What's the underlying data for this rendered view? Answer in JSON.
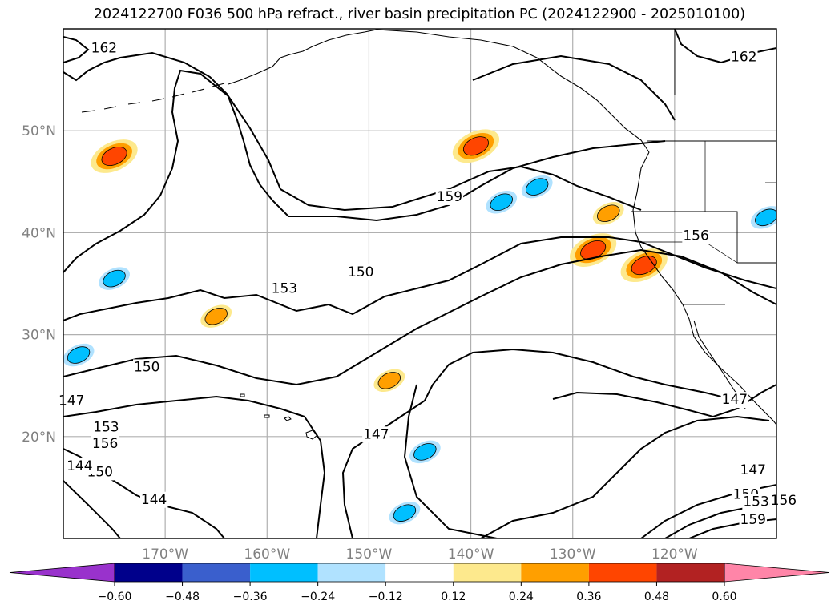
{
  "title": "2024122700 F036 500 hPa refract., river basin precipitation PC (2024122900 - 2025010100)",
  "chart_data": {
    "type": "contour-map",
    "title": "2024122700 F036 500 hPa refract., river basin precipitation PC (2024122900 - 2025010100)",
    "region": "North Pacific / western North America",
    "lon_range": [
      -180,
      -110
    ],
    "lat_range": [
      10,
      60
    ],
    "lon_ticks": [
      "170°W",
      "160°W",
      "150°W",
      "140°W",
      "130°W",
      "120°W"
    ],
    "lat_ticks": [
      "20°N",
      "30°N",
      "40°N",
      "50°N"
    ],
    "grid": true,
    "refractivity_contours": {
      "interval": 3,
      "labels": [
        "144",
        "147",
        "150",
        "153",
        "156",
        "159",
        "162"
      ]
    },
    "colorbar": {
      "orientation": "horizontal",
      "extend": "both",
      "ticks": [
        "−0.60",
        "−0.48",
        "−0.36",
        "−0.24",
        "−0.12",
        "0.12",
        "0.24",
        "0.36",
        "0.48",
        "0.60"
      ],
      "colors": [
        "#9932cc",
        "#00008b",
        "#3a5fcd",
        "#00bfff",
        "#b0e2ff",
        "#ffffff",
        "#fde98d",
        "#ff9f00",
        "#ff4500",
        "#b22222",
        "#ff85a8"
      ]
    },
    "contour_labels": [
      {
        "text": "162",
        "lon": -176.0,
        "lat": 57.7
      },
      {
        "text": "162",
        "lon": -113.2,
        "lat": 56.8
      },
      {
        "text": "159",
        "lon": -142.1,
        "lat": 43.1
      },
      {
        "text": "156",
        "lon": -117.9,
        "lat": 39.3
      },
      {
        "text": "153",
        "lon": -158.3,
        "lat": 34.1
      },
      {
        "text": "150",
        "lon": -150.8,
        "lat": 35.7
      },
      {
        "text": "150",
        "lon": -171.8,
        "lat": 26.4
      },
      {
        "text": "147",
        "lon": -179.2,
        "lat": 23.1
      },
      {
        "text": "147",
        "lon": -114.1,
        "lat": 23.2
      },
      {
        "text": "153",
        "lon": -175.8,
        "lat": 20.5
      },
      {
        "text": "156",
        "lon": -175.9,
        "lat": 18.9
      },
      {
        "text": "150",
        "lon": -176.4,
        "lat": 16.1
      },
      {
        "text": "147",
        "lon": -149.3,
        "lat": 19.8
      },
      {
        "text": "144",
        "lon": -178.4,
        "lat": 16.7
      },
      {
        "text": "144",
        "lon": -171.1,
        "lat": 13.4
      },
      {
        "text": "147",
        "lon": -112.3,
        "lat": 16.3
      },
      {
        "text": "150",
        "lon": -113.0,
        "lat": 13.9
      },
      {
        "text": "153",
        "lon": -112.0,
        "lat": 13.2
      },
      {
        "text": "156",
        "lon": -109.3,
        "lat": 13.3
      },
      {
        "text": "159",
        "lon": -112.3,
        "lat": 11.4
      }
    ],
    "precip_anomalies": [
      {
        "sign": "+",
        "lon": -139.5,
        "lat": 48.5,
        "peak": 0.36
      },
      {
        "sign": "+",
        "lon": -128.0,
        "lat": 38.3,
        "peak": 0.36
      },
      {
        "sign": "+",
        "lon": -123.0,
        "lat": 36.8,
        "peak": 0.36
      },
      {
        "sign": "+",
        "lon": -175.0,
        "lat": 47.5,
        "peak": 0.36
      },
      {
        "sign": "+",
        "lon": -165.0,
        "lat": 31.8,
        "peak": 0.24
      },
      {
        "sign": "+",
        "lon": -148.0,
        "lat": 25.5,
        "peak": 0.24
      },
      {
        "sign": "+",
        "lon": -126.5,
        "lat": 41.9,
        "peak": 0.24
      },
      {
        "sign": "-",
        "lon": -137.0,
        "lat": 43.0,
        "peak": -0.24
      },
      {
        "sign": "-",
        "lon": -133.5,
        "lat": 44.5,
        "peak": -0.24
      },
      {
        "sign": "-",
        "lon": -175.0,
        "lat": 35.5,
        "peak": -0.24
      },
      {
        "sign": "-",
        "lon": -178.5,
        "lat": 28.0,
        "peak": -0.24
      },
      {
        "sign": "-",
        "lon": -144.5,
        "lat": 18.5,
        "peak": -0.24
      },
      {
        "sign": "-",
        "lon": -146.5,
        "lat": 12.5,
        "peak": -0.24
      },
      {
        "sign": "-",
        "lon": -111.0,
        "lat": 41.5,
        "peak": -0.24
      }
    ]
  }
}
